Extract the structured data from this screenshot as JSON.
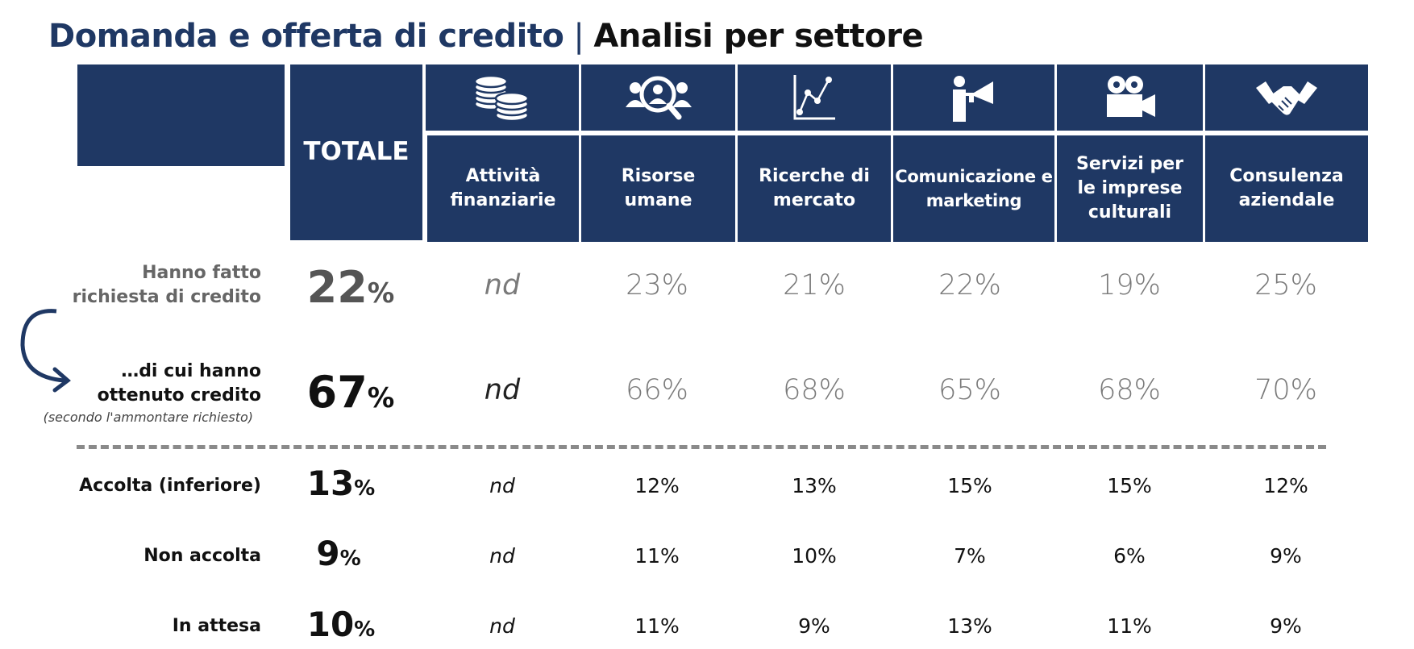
{
  "title": {
    "main": "Domanda e offerta di credito",
    "separator": "|",
    "sub": "Analisi per settore"
  },
  "header": {
    "totale_label": "TOTALE",
    "sectors": [
      {
        "label": "Attività finanziarie",
        "icon": "coins-icon"
      },
      {
        "label": "Risorse umane",
        "icon": "people-search-icon"
      },
      {
        "label": "Ricerche di mercato",
        "icon": "line-chart-icon"
      },
      {
        "label": "Comunicazione e marketing",
        "icon": "megaphone-icon"
      },
      {
        "label": "Servizi per le imprese culturali",
        "icon": "movie-camera-icon"
      },
      {
        "label": "Consulenza aziendale",
        "icon": "handshake-icon"
      }
    ]
  },
  "rows": [
    {
      "label": "Hanno fatto richiesta di credito",
      "total": "22",
      "values": [
        "nd",
        "23%",
        "21%",
        "22%",
        "19%",
        "25%"
      ]
    },
    {
      "label": "…di cui hanno ottenuto credito",
      "note": "(secondo l'ammontare richiesto)",
      "total": "67",
      "values": [
        "nd",
        "66%",
        "68%",
        "65%",
        "68%",
        "70%"
      ]
    },
    {
      "label": "Accolta (inferiore)",
      "total": "13",
      "values": [
        "nd",
        "12%",
        "13%",
        "15%",
        "15%",
        "12%"
      ]
    },
    {
      "label": "Non accolta",
      "total": "9",
      "values": [
        "nd",
        "11%",
        "10%",
        "7%",
        "6%",
        "9%"
      ]
    },
    {
      "label": "In attesa",
      "total": "10",
      "values": [
        "nd",
        "11%",
        "9%",
        "13%",
        "11%",
        "9%"
      ]
    }
  ],
  "percent_sign": "%",
  "colors": {
    "navy": "#1f3864",
    "value_grey": "#7a7a7a",
    "total_grey": "#555555",
    "dash": "#8a8a8a"
  }
}
